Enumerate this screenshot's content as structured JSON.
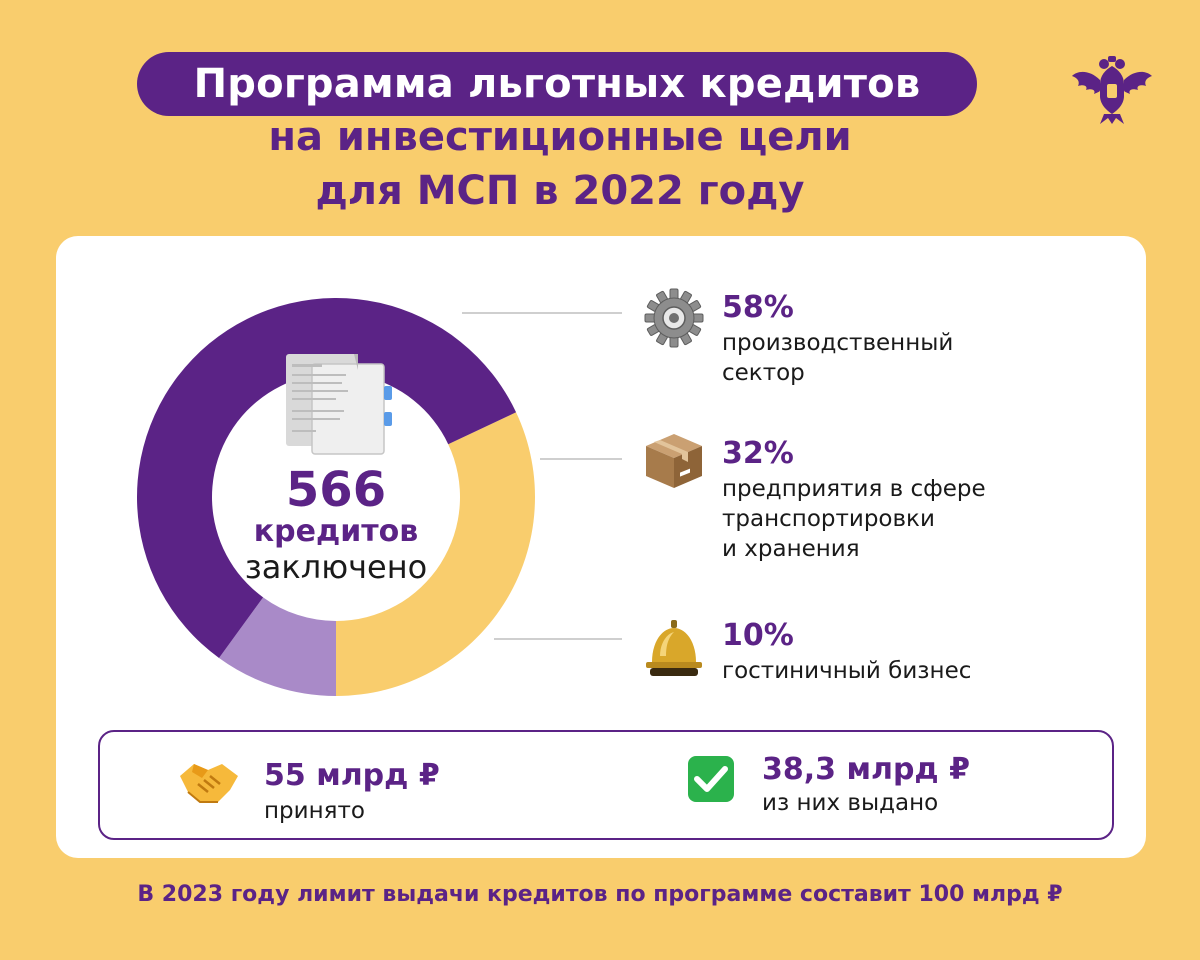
{
  "header": {
    "title_line1": "Программа льготных кредитов",
    "title_line2": "на инвестиционные цели",
    "title_line3": "для МСП в 2022 году"
  },
  "chart_data": {
    "type": "pie",
    "center": {
      "value": "566",
      "word1": "кредитов",
      "word2": "заключено"
    },
    "segments": [
      {
        "percent": "58%",
        "value": 58,
        "label_line1": "производственный",
        "label_line2": "сектор",
        "label_line3": "",
        "icon": "gear-icon",
        "color": "#5b2386"
      },
      {
        "percent": "32%",
        "value": 32,
        "label_line1": "предприятия в сфере",
        "label_line2": "транспортировки",
        "label_line3": "и хранения",
        "icon": "box-icon",
        "color": "#f9cd6d"
      },
      {
        "percent": "10%",
        "value": 10,
        "label_line1": "гостиничный бизнес",
        "label_line2": "",
        "label_line3": "",
        "icon": "bell-icon",
        "color": "#a98ac8"
      }
    ]
  },
  "stats": {
    "accepted_value": "55 млрд ₽",
    "accepted_label": "принято",
    "issued_value": "38,3 млрд ₽",
    "issued_label": "из них выдано"
  },
  "footer": "В 2023 году лимит выдачи кредитов по программе составит 100 млрд ₽",
  "colors": {
    "background": "#f9cd6d",
    "brand_purple": "#5b2386",
    "light_purple": "#a98ac8",
    "card": "#ffffff"
  }
}
